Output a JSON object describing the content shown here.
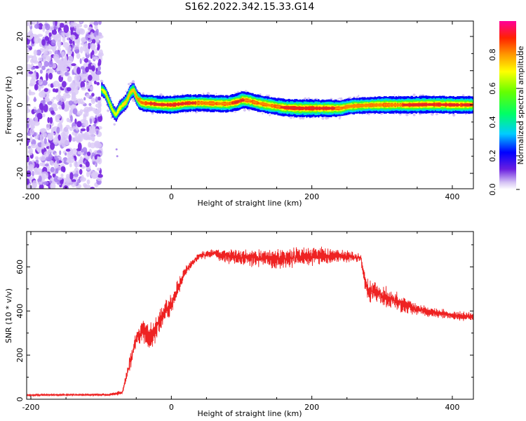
{
  "title": "S162.2022.342.15.33.G14",
  "colors": {
    "snr_line": "#ee2222",
    "scatter": "#7a2be0",
    "ridge_core": "#e02a2a"
  },
  "chart_data": [
    {
      "type": "heatmap",
      "xlabel": "Height of straight line (km)",
      "ylabel": "Frequency (Hz)",
      "xlim": [
        -206,
        430
      ],
      "ylim": [
        -24.5,
        24.5
      ],
      "xticks": [
        -200,
        0,
        200,
        400
      ],
      "yticks": [
        -20,
        -10,
        0,
        10,
        20
      ],
      "noise_region_x": [
        -206,
        -100
      ],
      "ridge": {
        "x": [
          -100,
          -95,
          -90,
          -85,
          -80,
          -75,
          -70,
          -65,
          -60,
          -55,
          -50,
          -45,
          -40,
          -30,
          -20,
          0,
          20,
          40,
          60,
          80,
          95,
          100,
          110,
          120,
          135,
          150,
          160,
          180,
          200,
          220,
          240,
          250,
          260,
          280,
          300,
          320,
          340,
          360,
          380,
          400,
          420,
          430
        ],
        "y": [
          4.5,
          3.5,
          1.0,
          -1.5,
          -3.0,
          -1.0,
          0.0,
          1.0,
          3.5,
          4.5,
          2.0,
          0.8,
          0.5,
          0.4,
          0.1,
          0.0,
          0.5,
          0.6,
          0.4,
          0.3,
          1.0,
          1.5,
          1.2,
          0.6,
          0.0,
          -0.5,
          -0.8,
          -1.0,
          -1.0,
          -1.0,
          -1.0,
          -0.5,
          -0.3,
          -0.1,
          0.0,
          0.0,
          0.0,
          0.1,
          0.1,
          0.0,
          0.0,
          0.0
        ],
        "amplitude": [
          0.45,
          0.4,
          0.35,
          0.4,
          0.4,
          0.45,
          0.5,
          0.55,
          0.6,
          0.55,
          0.7,
          0.75,
          0.8,
          0.85,
          0.85,
          0.9,
          0.85,
          0.8,
          0.8,
          0.8,
          0.85,
          0.8,
          0.8,
          0.8,
          0.8,
          0.8,
          0.85,
          0.9,
          0.9,
          0.85,
          0.8,
          0.7,
          0.75,
          0.75,
          0.8,
          0.8,
          0.85,
          0.85,
          0.85,
          0.85,
          0.85,
          0.8
        ]
      },
      "colorbar": {
        "label": "Normalized spectral amplitude",
        "range": [
          0.0,
          1.0
        ],
        "ticks": [
          0.0,
          0.2,
          0.4,
          0.6,
          0.8
        ],
        "tick_labels": [
          "0.0",
          "0.2",
          "0.4",
          "0.6",
          "0.8"
        ]
      }
    },
    {
      "type": "line",
      "xlabel": "Height of straight line (km)",
      "ylabel": "SNR (10 * v/v)",
      "xlim": [
        -206,
        430
      ],
      "ylim": [
        0,
        760
      ],
      "xticks": [
        -200,
        0,
        200,
        400
      ],
      "yticks": [
        0,
        200,
        400,
        600
      ],
      "series": [
        {
          "x": [
            -206,
            -180,
            -150,
            -120,
            -90,
            -70,
            -60,
            -50,
            -40,
            -30,
            -20,
            -10,
            0,
            10,
            20,
            30,
            40,
            60,
            80,
            100,
            130,
            160,
            200,
            240,
            270,
            275,
            280,
            300,
            330,
            360,
            400,
            430
          ],
          "y": [
            18,
            20,
            20,
            20,
            20,
            30,
            150,
            280,
            300,
            280,
            330,
            400,
            430,
            510,
            580,
            620,
            650,
            660,
            650,
            640,
            640,
            640,
            650,
            650,
            640,
            540,
            500,
            470,
            430,
            400,
            380,
            370
          ],
          "spread": [
            8,
            8,
            8,
            8,
            10,
            20,
            60,
            80,
            100,
            110,
            100,
            90,
            80,
            60,
            40,
            30,
            30,
            40,
            60,
            70,
            80,
            80,
            80,
            50,
            40,
            70,
            90,
            80,
            70,
            40,
            40,
            40
          ]
        }
      ]
    }
  ]
}
